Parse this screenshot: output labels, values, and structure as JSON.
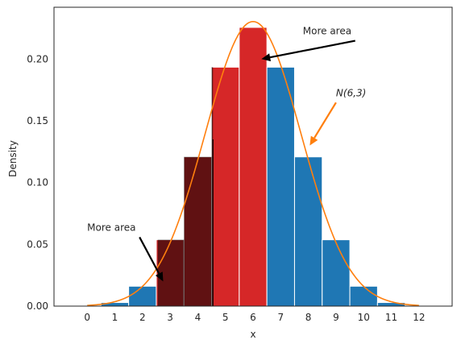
{
  "chart_data": {
    "type": "bar",
    "xlabel": "x",
    "ylabel": "Density",
    "xlim": [
      -1.2,
      13.2
    ],
    "ylim": [
      0,
      0.2419
    ],
    "grid": false,
    "x_ticks": [
      0,
      1,
      2,
      3,
      4,
      5,
      6,
      7,
      8,
      9,
      10,
      11,
      12
    ],
    "y_ticks": [
      0.0,
      0.05,
      0.1,
      0.15,
      0.2
    ],
    "y_tick_labels": [
      "0.00",
      "0.05",
      "0.10",
      "0.15",
      "0.20"
    ],
    "bar_width": 1.0,
    "bars": [
      {
        "x": 1,
        "value": 0.0029,
        "fill": "blue"
      },
      {
        "x": 2,
        "value": 0.0161,
        "fill": "blue"
      },
      {
        "x": 3,
        "value": 0.0537,
        "fill": "red"
      },
      {
        "x": 4,
        "value": 0.1208,
        "fill": "red"
      },
      {
        "x": 5,
        "value": 0.1934,
        "fill": "red"
      },
      {
        "x": 6,
        "value": 0.2256,
        "fill": "red"
      },
      {
        "x": 7,
        "value": 0.1934,
        "fill": "blue"
      },
      {
        "x": 8,
        "value": 0.1208,
        "fill": "blue"
      },
      {
        "x": 9,
        "value": 0.0537,
        "fill": "blue"
      },
      {
        "x": 10,
        "value": 0.0161,
        "fill": "blue"
      },
      {
        "x": 11,
        "value": 0.0029,
        "fill": "blue"
      },
      {
        "x": 12,
        "value": 0.0002,
        "fill": "blue"
      }
    ],
    "shaded_region": {
      "from": 2.55,
      "to": 4.55,
      "color": "#000000",
      "opacity": 0.55
    },
    "curve": {
      "label": "N(6, 3)",
      "mean": 6,
      "variance": 3,
      "x_range": [
        0,
        12
      ],
      "color": "#ff7f0e"
    },
    "annotations": [
      {
        "text": "More area",
        "text_x": 7.8,
        "text_y": 0.22,
        "arrow_to_x": 6.3,
        "arrow_to_y": 0.2,
        "color": "#000000"
      },
      {
        "text": "More area",
        "text_x": 0.0,
        "text_y": 0.061,
        "arrow_to_x": 2.75,
        "arrow_to_y": 0.02,
        "color": "#000000"
      },
      {
        "text": "N(6,3)",
        "text_x": 9.0,
        "text_y": 0.17,
        "arrow_to_x": 8.05,
        "arrow_to_y": 0.13,
        "color": "#ff7f0e"
      }
    ],
    "colors": {
      "blue": "#1f77b4",
      "red": "#d62728",
      "curve": "#ff7f0e",
      "axis": "#262626"
    }
  }
}
